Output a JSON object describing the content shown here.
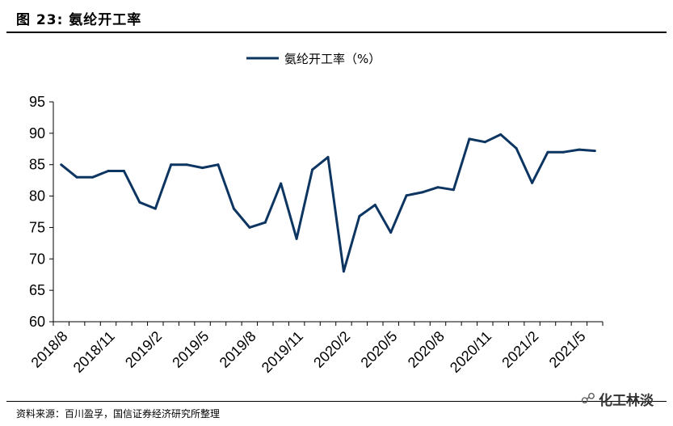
{
  "figure": {
    "title": "图 23: 氨纶开工率",
    "source": "资料来源：百川盈孚，国信证券经济研究所整理",
    "watermark": "化工林淡",
    "watermark_icon": "wechat-icon"
  },
  "chart_data": {
    "type": "line",
    "title": "",
    "xlabel": "",
    "ylabel": "",
    "ylim": [
      60,
      95
    ],
    "yticks": [
      60,
      65,
      70,
      75,
      80,
      85,
      90,
      95
    ],
    "grid": false,
    "legend_position": "top-center",
    "x_tick_labels": [
      "2018/8",
      "2018/11",
      "2019/2",
      "2019/5",
      "2019/8",
      "2019/11",
      "2020/2",
      "2020/5",
      "2020/8",
      "2020/11",
      "2021/2",
      "2021/5"
    ],
    "series": [
      {
        "name": "氨纶开工率（%）",
        "color": "#0d3561",
        "points": [
          {
            "x": "2018/8",
            "y": 85.0
          },
          {
            "x": "2018/9",
            "y": 83.0
          },
          {
            "x": "2018/10",
            "y": 83.0
          },
          {
            "x": "2018/11",
            "y": 84.0
          },
          {
            "x": "2018/12",
            "y": 84.0
          },
          {
            "x": "2019/1",
            "y": 79.0
          },
          {
            "x": "2019/2",
            "y": 78.0
          },
          {
            "x": "2019/3",
            "y": 85.0
          },
          {
            "x": "2019/4",
            "y": 85.0
          },
          {
            "x": "2019/5",
            "y": 84.5
          },
          {
            "x": "2019/6",
            "y": 85.0
          },
          {
            "x": "2019/7",
            "y": 78.0
          },
          {
            "x": "2019/8",
            "y": 75.0
          },
          {
            "x": "2019/9",
            "y": 75.8
          },
          {
            "x": "2019/10",
            "y": 82.0
          },
          {
            "x": "2019/11",
            "y": 73.2
          },
          {
            "x": "2019/12",
            "y": 84.2
          },
          {
            "x": "2020/1",
            "y": 86.2
          },
          {
            "x": "2020/2",
            "y": 68.0
          },
          {
            "x": "2020/3",
            "y": 76.8
          },
          {
            "x": "2020/4",
            "y": 78.6
          },
          {
            "x": "2020/5",
            "y": 74.2
          },
          {
            "x": "2020/6",
            "y": 80.1
          },
          {
            "x": "2020/7",
            "y": 80.6
          },
          {
            "x": "2020/8",
            "y": 81.4
          },
          {
            "x": "2020/9",
            "y": 81.0
          },
          {
            "x": "2020/10",
            "y": 89.1
          },
          {
            "x": "2020/11",
            "y": 88.6
          },
          {
            "x": "2020/12",
            "y": 89.8
          },
          {
            "x": "2021/1",
            "y": 87.6
          },
          {
            "x": "2021/2",
            "y": 82.1
          },
          {
            "x": "2021/3",
            "y": 87.0
          },
          {
            "x": "2021/4",
            "y": 87.0
          },
          {
            "x": "2021/5",
            "y": 87.4
          },
          {
            "x": "2021/6",
            "y": 87.2
          }
        ]
      }
    ]
  }
}
